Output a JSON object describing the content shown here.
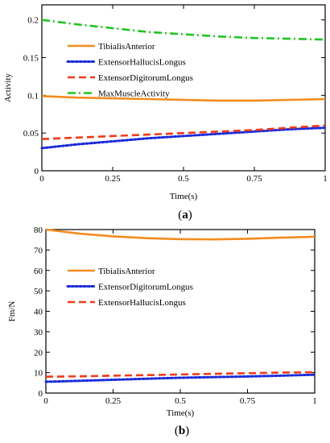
{
  "chart_data": [
    {
      "type": "line",
      "xlabel": "Time(s)",
      "ylabel": "Activity",
      "caption": {
        "open": "(",
        "label": "a",
        "close": ")"
      },
      "xlim": [
        0,
        1
      ],
      "ylim": [
        0,
        0.22
      ],
      "xticks": [
        0,
        0.25,
        0.5,
        0.75,
        1
      ],
      "xtick_labels": [
        "0",
        "0.25",
        "0.5",
        "0.75",
        "1"
      ],
      "yticks": [
        0,
        0.05,
        0.1,
        0.15,
        0.2
      ],
      "ytick_labels": [
        "0",
        "0.05",
        "0.1",
        "0.15",
        "0.2"
      ],
      "legend": "upper-left",
      "grid": false,
      "x": [
        0,
        0.125,
        0.25,
        0.375,
        0.5,
        0.625,
        0.75,
        0.875,
        1
      ],
      "series": [
        {
          "name": "TibialisAnterior",
          "color": "#f28c1e",
          "dash": "solid",
          "values": [
            0.099,
            0.097,
            0.096,
            0.095,
            0.094,
            0.093,
            0.093,
            0.094,
            0.095
          ]
        },
        {
          "name": "ExtensorHallucisLongus",
          "color": "#1a2bd9",
          "dash": "dotted",
          "values": [
            0.03,
            0.035,
            0.039,
            0.043,
            0.046,
            0.049,
            0.052,
            0.055,
            0.057
          ]
        },
        {
          "name": "ExtensorDigitorumLongus",
          "color": "#f03a1a",
          "dash": "dashed",
          "values": [
            0.042,
            0.044,
            0.046,
            0.048,
            0.05,
            0.052,
            0.054,
            0.057,
            0.06
          ]
        },
        {
          "name": "MaxMuscleActivity",
          "color": "#22c422",
          "dash": "dashdot",
          "values": [
            0.2,
            0.194,
            0.189,
            0.184,
            0.181,
            0.178,
            0.176,
            0.175,
            0.174
          ]
        }
      ]
    },
    {
      "type": "line",
      "xlabel": "Time(s)",
      "ylabel": "Fm/N",
      "caption": {
        "open": "(",
        "label": "b",
        "close": ")"
      },
      "xlim": [
        0,
        1
      ],
      "ylim": [
        0,
        80
      ],
      "xticks": [
        0,
        0.25,
        0.5,
        0.75,
        1
      ],
      "xtick_labels": [
        "0",
        "0.25",
        "0.5",
        "0.75",
        "1"
      ],
      "yticks": [
        0,
        10,
        20,
        30,
        40,
        50,
        60,
        70,
        80
      ],
      "ytick_labels": [
        "0",
        "10",
        "20",
        "30",
        "40",
        "50",
        "60",
        "70",
        "80"
      ],
      "legend": "upper-left",
      "grid": false,
      "x": [
        0,
        0.125,
        0.25,
        0.375,
        0.5,
        0.625,
        0.75,
        0.875,
        1
      ],
      "series": [
        {
          "name": "TibialisAnterior",
          "color": "#f28c1e",
          "dash": "solid",
          "values": [
            80,
            78,
            76.7,
            75.8,
            75.3,
            75.2,
            75.5,
            76,
            76.5
          ]
        },
        {
          "name": "ExtensorDigitorumLongus",
          "color": "#1a2bd9",
          "dash": "dotted",
          "values": [
            5.5,
            6,
            6.5,
            7,
            7.5,
            7.8,
            8.1,
            8.5,
            9
          ]
        },
        {
          "name": "ExtensorHallucisLongus",
          "color": "#f03a1a",
          "dash": "dashed",
          "values": [
            8,
            8.2,
            8.5,
            8.8,
            9.1,
            9.4,
            9.7,
            10,
            10.2
          ]
        }
      ]
    }
  ]
}
